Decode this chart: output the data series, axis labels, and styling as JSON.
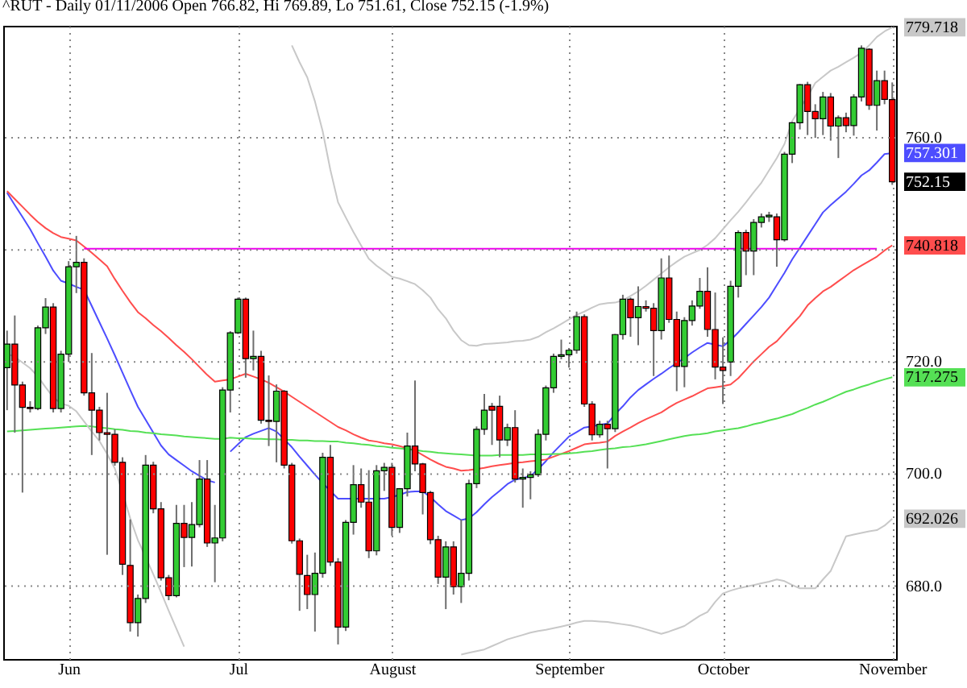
{
  "chart_data": {
    "type": "candlestick",
    "title": "^RUT - Daily 01/11/2006 Open 766.82, Hi 769.89, Lo 751.61, Close 752.15 (-1.9%)",
    "categories": [
      null,
      null,
      null,
      null,
      null,
      null,
      null,
      null,
      "Jun",
      null,
      null,
      null,
      null,
      null,
      null,
      null,
      null,
      null,
      null,
      null,
      null,
      null,
      null,
      null,
      null,
      null,
      null,
      null,
      null,
      null,
      "Jul",
      null,
      null,
      null,
      null,
      null,
      null,
      null,
      null,
      null,
      null,
      null,
      null,
      null,
      null,
      null,
      null,
      null,
      null,
      null,
      "August",
      null,
      null,
      null,
      null,
      null,
      null,
      null,
      null,
      null,
      null,
      null,
      null,
      null,
      null,
      null,
      null,
      null,
      null,
      null,
      null,
      null,
      null,
      "September",
      null,
      null,
      null,
      null,
      null,
      null,
      null,
      null,
      null,
      null,
      null,
      null,
      null,
      null,
      null,
      null,
      null,
      null,
      null,
      "October",
      null,
      null,
      null,
      null,
      null,
      null,
      null,
      null,
      null,
      null,
      null,
      null,
      null,
      null,
      null,
      null,
      null,
      null,
      null,
      null,
      null,
      "November"
    ],
    "ohlc": [
      [
        719.0,
        725.6,
        711.4,
        723.2
      ],
      [
        723.2,
        728.3,
        707.4,
        715.9
      ],
      [
        715.9,
        716.5,
        696.7,
        711.9
      ],
      [
        711.9,
        713.0,
        711.0,
        711.7
      ],
      [
        711.7,
        726.5,
        711.4,
        726.1
      ],
      [
        726.1,
        731.4,
        725.0,
        729.8
      ],
      [
        729.8,
        730.5,
        711.0,
        711.7
      ],
      [
        711.7,
        722.0,
        711.0,
        721.4
      ],
      [
        721.4,
        738.0,
        720.0,
        737.0
      ],
      [
        737.0,
        742.5,
        732.3,
        737.8
      ],
      [
        737.8,
        738.5,
        714.0,
        714.5
      ],
      [
        714.5,
        721.6,
        703.4,
        711.4
      ],
      [
        711.4,
        712.0,
        706.0,
        707.4
      ],
      [
        707.4,
        714.5,
        685.6,
        707.1
      ],
      [
        707.1,
        708.0,
        701.5,
        702.1
      ],
      [
        702.1,
        703.0,
        682.0,
        683.9
      ],
      [
        683.7,
        691.9,
        671.9,
        673.5
      ],
      [
        673.5,
        678.5,
        671.0,
        677.8
      ],
      [
        677.8,
        703.4,
        677.0,
        701.6
      ],
      [
        701.6,
        702.2,
        693.0,
        693.8
      ],
      [
        693.8,
        695.0,
        681.0,
        681.5
      ],
      [
        681.5,
        682.0,
        677.5,
        678.3
      ],
      [
        678.3,
        694.5,
        678.0,
        691.2
      ],
      [
        691.2,
        694.5,
        683.4,
        688.7
      ],
      [
        688.7,
        695.0,
        683.5,
        691.0
      ],
      [
        691.0,
        702.5,
        690.5,
        699.1
      ],
      [
        699.1,
        702.5,
        687.0,
        687.7
      ],
      [
        687.7,
        694.5,
        680.7,
        688.6
      ],
      [
        688.6,
        715.5,
        688.0,
        715.0
      ],
      [
        715.0,
        725.5,
        711.0,
        725.2
      ],
      [
        725.2,
        731.5,
        725.0,
        731.2
      ],
      [
        731.2,
        731.5,
        717.2,
        720.6
      ],
      [
        720.6,
        725.6,
        718.5,
        721.0
      ],
      [
        721.0,
        722.0,
        709.0,
        709.6
      ],
      [
        709.6,
        717.6,
        705.0,
        709.4
      ],
      [
        709.4,
        716.0,
        702.1,
        714.8
      ],
      [
        714.8,
        715.0,
        701.0,
        701.6
      ],
      [
        701.6,
        702.0,
        687.6,
        688.1
      ],
      [
        688.1,
        688.5,
        675.6,
        682.1
      ],
      [
        681.9,
        685.6,
        675.9,
        678.5
      ],
      [
        678.5,
        686.0,
        671.9,
        682.3
      ],
      [
        682.3,
        703.8,
        681.5,
        703.0
      ],
      [
        703.0,
        705.2,
        683.6,
        684.3
      ],
      [
        684.3,
        685.0,
        669.6,
        672.7
      ],
      [
        672.7,
        691.8,
        672.0,
        691.4
      ],
      [
        691.4,
        701.6,
        689.2,
        698.1
      ],
      [
        698.1,
        701.0,
        694.0,
        695.0
      ],
      [
        695.0,
        700.7,
        685.0,
        686.3
      ],
      [
        686.3,
        701.6,
        685.5,
        700.6
      ],
      [
        700.6,
        702.0,
        697.0,
        701.2
      ],
      [
        701.2,
        702.0,
        689.0,
        690.5
      ],
      [
        690.5,
        697.5,
        689.5,
        697.4
      ],
      [
        697.4,
        707.4,
        696.0,
        705.0
      ],
      [
        705.0,
        716.7,
        700.5,
        701.8
      ],
      [
        701.8,
        702.0,
        692.8,
        696.7
      ],
      [
        696.7,
        697.0,
        687.5,
        688.3
      ],
      [
        688.3,
        689.0,
        680.4,
        681.6
      ],
      [
        681.6,
        688.0,
        675.9,
        687.0
      ],
      [
        687.0,
        688.0,
        678.5,
        679.9
      ],
      [
        679.9,
        691.9,
        677.0,
        682.3
      ],
      [
        682.3,
        699.0,
        681.0,
        698.3
      ],
      [
        698.3,
        708.5,
        697.5,
        708.0
      ],
      [
        708.0,
        714.3,
        707.0,
        711.4
      ],
      [
        712.1,
        712.7,
        705.2,
        711.4
      ],
      [
        712.1,
        714.0,
        703.0,
        706.1
      ],
      [
        706.1,
        709.0,
        705.0,
        708.3
      ],
      [
        708.3,
        711.4,
        698.5,
        699.1
      ],
      [
        699.1,
        701.0,
        694.0,
        699.4
      ],
      [
        699.4,
        700.5,
        695.5,
        699.9
      ],
      [
        699.9,
        708.0,
        699.5,
        707.1
      ],
      [
        707.1,
        715.8,
        706.0,
        715.4
      ],
      [
        715.4,
        721.5,
        714.5,
        721.0
      ],
      [
        721.0,
        724.0,
        720.5,
        721.3
      ],
      [
        721.3,
        722.5,
        719.0,
        722.1
      ],
      [
        722.1,
        729.0,
        721.5,
        728.1
      ],
      [
        728.1,
        728.5,
        712.0,
        712.5
      ],
      [
        712.5,
        713.0,
        706.0,
        707.0
      ],
      [
        707.0,
        709.5,
        706.5,
        708.9
      ],
      [
        708.9,
        709.5,
        701.0,
        708.1
      ],
      [
        708.1,
        725.0,
        707.5,
        724.9
      ],
      [
        724.9,
        732.0,
        724.0,
        731.2
      ],
      [
        731.2,
        731.5,
        724.5,
        727.9
      ],
      [
        727.9,
        733.5,
        723.0,
        729.9
      ],
      [
        729.9,
        731.0,
        729.0,
        729.6
      ],
      [
        729.6,
        730.5,
        717.5,
        725.6
      ],
      [
        725.6,
        738.5,
        724.0,
        735.0
      ],
      [
        735.0,
        739.0,
        727.0,
        727.6
      ],
      [
        727.6,
        729.0,
        714.8,
        719.2
      ],
      [
        719.2,
        728.0,
        715.5,
        727.4
      ],
      [
        727.4,
        731.0,
        726.5,
        730.0
      ],
      [
        730.0,
        735.0,
        729.5,
        732.6
      ],
      [
        732.6,
        736.9,
        724.5,
        725.8
      ],
      [
        725.8,
        732.4,
        716.9,
        719.1
      ],
      [
        719.1,
        724.4,
        712.5,
        718.5
      ],
      [
        720.0,
        734.5,
        717.5,
        733.5
      ],
      [
        733.5,
        743.5,
        731.5,
        743.1
      ],
      [
        743.1,
        743.6,
        735.5,
        739.8
      ],
      [
        739.8,
        745.5,
        735.5,
        744.9
      ],
      [
        744.9,
        746.5,
        744.0,
        745.9
      ],
      [
        745.9,
        746.8,
        745.0,
        746.2
      ],
      [
        745.9,
        746.5,
        737.0,
        741.8
      ],
      [
        741.8,
        757.5,
        741.5,
        757.1
      ],
      [
        757.1,
        762.8,
        755.5,
        762.7
      ],
      [
        762.7,
        769.6,
        761.5,
        769.5
      ],
      [
        769.5,
        770.0,
        760.5,
        764.7
      ],
      [
        764.7,
        766.0,
        760.0,
        763.4
      ],
      [
        763.4,
        768.2,
        760.5,
        767.3
      ],
      [
        767.3,
        768.0,
        759.5,
        762.1
      ],
      [
        762.1,
        764.0,
        756.4,
        763.6
      ],
      [
        763.6,
        764.5,
        761.0,
        762.2
      ],
      [
        762.2,
        767.8,
        760.4,
        767.3
      ],
      [
        767.3,
        776.5,
        766.5,
        776.0
      ],
      [
        775.8,
        776.0,
        765.0,
        765.8
      ],
      [
        765.8,
        772.0,
        761.3,
        770.2
      ],
      [
        770.2,
        772.0,
        766.0,
        766.85
      ],
      [
        766.82,
        769.89,
        751.61,
        752.15
      ]
    ],
    "series": [
      {
        "type": "line",
        "color": "#4d4dff",
        "values": [
          750.2,
          748.0,
          745.9,
          743.7,
          741.2,
          738.8,
          736.3,
          734.5,
          734.0,
          733.4,
          732.9,
          730.0,
          727.1,
          724.2,
          721.2,
          718.1,
          715.0,
          712.0,
          709.7,
          707.4,
          705.1,
          703.5,
          702.5,
          701.5,
          700.5,
          699.7,
          698.9,
          698.5,
          null,
          704.0,
          705.3,
          706.6,
          707.2,
          707.7,
          708.2,
          707.6,
          706.2,
          704.8,
          703.1,
          701.5,
          699.9,
          698.4,
          697.0,
          695.6,
          695.6,
          695.6,
          695.6,
          695.6,
          695.6,
          695.6,
          695.9,
          696.3,
          696.8,
          696.9,
          696.9,
          695.9,
          694.6,
          693.4,
          692.6,
          691.8,
          692.1,
          693.2,
          694.6,
          695.9,
          697.0,
          698.2,
          699.0,
          699.3,
          699.6,
          700.9,
          702.3,
          703.9,
          705.3,
          706.7,
          707.5,
          708.3,
          708.5,
          708.8,
          709.0,
          710.7,
          712.1,
          713.7,
          715.0,
          716.0,
          717.0,
          717.9,
          718.9,
          719.8,
          720.7,
          721.7,
          722.6,
          723.4,
          723.1,
          722.8,
          723.9,
          725.3,
          726.8,
          728.3,
          729.8,
          731.5,
          733.7,
          735.9,
          738.3,
          740.4,
          742.5,
          744.6,
          746.7,
          748.0,
          749.2,
          750.4,
          751.8,
          753.3,
          754.2,
          755.6,
          757.1,
          757.301
        ]
      },
      {
        "type": "line",
        "color": "#ff4d4d",
        "values": [
          750.5,
          749.1,
          747.7,
          746.3,
          745.0,
          743.9,
          743.0,
          742.3,
          742.0,
          741.7,
          740.6,
          739.5,
          738.3,
          737.1,
          734.8,
          732.7,
          730.7,
          728.9,
          727.8,
          726.6,
          725.5,
          724.3,
          723.0,
          721.8,
          720.5,
          719.1,
          717.7,
          716.5,
          716.7,
          716.9,
          717.4,
          717.9,
          717.4,
          716.9,
          716.3,
          715.5,
          714.7,
          713.8,
          712.9,
          712.0,
          711.1,
          710.2,
          709.3,
          708.4,
          707.8,
          707.1,
          706.5,
          706.0,
          705.8,
          705.5,
          705.3,
          705.0,
          704.6,
          704.2,
          703.4,
          702.6,
          701.9,
          701.3,
          701.0,
          700.6,
          700.7,
          700.9,
          701.1,
          701.4,
          701.6,
          701.8,
          702.0,
          702.1,
          702.3,
          702.4,
          702.6,
          703.1,
          703.6,
          704.1,
          704.7,
          705.3,
          705.5,
          705.6,
          705.8,
          706.8,
          707.6,
          708.3,
          709.1,
          709.8,
          710.4,
          711.0,
          711.9,
          712.7,
          713.3,
          713.9,
          714.6,
          715.3,
          715.5,
          715.7,
          716.0,
          717.1,
          718.6,
          720.1,
          721.4,
          722.7,
          723.7,
          725.2,
          726.7,
          728.2,
          730.1,
          731.4,
          732.6,
          733.4,
          734.4,
          735.4,
          736.4,
          737.2,
          738.0,
          738.8,
          739.9,
          740.818
        ]
      },
      {
        "type": "line",
        "color": "#55e055",
        "values": [
          707.6,
          707.7,
          707.8,
          707.9,
          708.0,
          708.1,
          708.2,
          708.3,
          708.4,
          708.5,
          708.6,
          708.5,
          708.3,
          708.2,
          708.0,
          707.9,
          707.7,
          707.6,
          707.4,
          707.3,
          707.1,
          707.0,
          706.9,
          706.7,
          706.6,
          706.5,
          706.4,
          706.3,
          706.3,
          706.5,
          706.4,
          706.4,
          706.3,
          706.3,
          706.2,
          706.2,
          706.1,
          706.1,
          706.0,
          706.0,
          705.9,
          705.9,
          705.8,
          705.8,
          705.6,
          705.5,
          705.3,
          705.2,
          705.0,
          704.9,
          704.7,
          704.6,
          704.4,
          704.3,
          704.1,
          704.0,
          703.8,
          703.7,
          703.6,
          703.5,
          703.4,
          703.3,
          703.3,
          703.3,
          703.4,
          703.4,
          703.4,
          703.4,
          703.5,
          703.5,
          703.5,
          703.6,
          703.6,
          703.7,
          703.8,
          704.0,
          704.1,
          704.3,
          704.5,
          704.6,
          704.8,
          704.9,
          705.1,
          705.3,
          705.6,
          705.9,
          706.2,
          706.5,
          706.8,
          707.0,
          707.1,
          707.3,
          707.6,
          707.8,
          708.0,
          708.2,
          708.5,
          708.9,
          709.2,
          709.6,
          709.9,
          710.3,
          710.7,
          711.3,
          711.8,
          712.4,
          712.9,
          713.5,
          714.1,
          714.7,
          715.1,
          715.6,
          716.0,
          716.5,
          716.9,
          717.275
        ]
      },
      {
        "type": "line",
        "color": "#c8c8c8",
        "values": [
          null,
          null,
          null,
          null,
          null,
          null,
          null,
          null,
          null,
          null,
          null,
          null,
          null,
          null,
          null,
          null,
          null,
          null,
          null,
          null,
          null,
          null,
          null,
          null,
          null,
          null,
          null,
          null,
          null,
          null,
          null,
          null,
          null,
          null,
          null,
          null,
          null,
          776.5,
          773.5,
          770.8,
          766.5,
          761.2,
          754.3,
          748.5,
          745.8,
          743.2,
          740.8,
          738.4,
          737.2,
          736.2,
          735.2,
          734.9,
          734.4,
          733.9,
          732.8,
          731.5,
          729.4,
          727.8,
          725.6,
          723.9,
          723.0,
          722.9,
          723.2,
          723.3,
          723.4,
          723.5,
          723.7,
          723.8,
          724.0,
          724.5,
          725.3,
          726.0,
          726.8,
          727.6,
          728.4,
          729.0,
          729.7,
          730.3,
          730.5,
          730.6,
          731.0,
          731.8,
          732.6,
          733.6,
          734.7,
          735.8,
          736.9,
          737.9,
          738.8,
          739.4,
          740.0,
          740.9,
          742.1,
          743.7,
          745.3,
          746.8,
          748.5,
          750.3,
          752.0,
          754.2,
          756.4,
          758.9,
          763.0,
          765.2,
          767.4,
          769.8,
          770.9,
          772.0,
          772.7,
          773.5,
          774.3,
          775.2,
          776.5,
          778.0,
          779.0,
          779.718
        ]
      },
      {
        "type": "line",
        "color": "#c8c8c8",
        "values": [
          721.5,
          720.9,
          719.9,
          718.9,
          717.4,
          715.5,
          713.7,
          712.6,
          712.2,
          711.2,
          709.4,
          707.6,
          705.9,
          703.6,
          701.0,
          696.7,
          692.1,
          688.2,
          685.2,
          682.1,
          678.9,
          675.6,
          672.4,
          669.2,
          null,
          null,
          null,
          null,
          null,
          null,
          null,
          null,
          null,
          null,
          null,
          null,
          null,
          null,
          null,
          null,
          null,
          null,
          null,
          null,
          null,
          null,
          null,
          null,
          null,
          null,
          null,
          null,
          null,
          null,
          null,
          null,
          null,
          null,
          null,
          667.8,
          668.1,
          668.4,
          668.7,
          669.3,
          669.9,
          670.5,
          670.9,
          671.3,
          671.7,
          672.0,
          672.2,
          672.5,
          672.8,
          673.1,
          673.5,
          673.8,
          673.8,
          673.7,
          673.6,
          673.4,
          673.2,
          673.0,
          672.7,
          672.3,
          671.9,
          671.5,
          671.9,
          672.4,
          672.9,
          673.8,
          674.7,
          675.4,
          677.2,
          678.7,
          679.2,
          679.6,
          679.9,
          680.2,
          680.5,
          680.8,
          681.2,
          680.9,
          680.2,
          679.6,
          679.6,
          679.6,
          681.2,
          682.7,
          685.8,
          688.9,
          689.2,
          689.5,
          689.8,
          690.0,
          690.8,
          692.026
        ]
      },
      {
        "type": "line",
        "color": "#ee00ee",
        "values": [
          null,
          null,
          null,
          null,
          null,
          null,
          null,
          null,
          null,
          null,
          740.2,
          740.2,
          740.2,
          740.2,
          740.2,
          740.2,
          740.2,
          740.2,
          740.2,
          740.2,
          740.2,
          740.2,
          740.2,
          740.2,
          740.2,
          740.2,
          740.2,
          740.2,
          740.2,
          740.2,
          740.2,
          740.2,
          740.2,
          740.2,
          740.2,
          740.2,
          740.2,
          740.2,
          740.2,
          740.2,
          740.2,
          740.2,
          740.2,
          740.2,
          740.2,
          740.2,
          740.2,
          740.2,
          740.2,
          740.2,
          740.2,
          740.2,
          740.2,
          740.2,
          740.2,
          740.2,
          740.2,
          740.2,
          740.2,
          740.2,
          740.2,
          740.2,
          740.2,
          740.2,
          740.2,
          740.2,
          740.2,
          740.2,
          740.2,
          740.2,
          740.2,
          740.2,
          740.2,
          740.2,
          740.2,
          740.2,
          740.2,
          740.2,
          740.2,
          740.2,
          740.2,
          740.2,
          740.2,
          740.2,
          740.2,
          740.2,
          740.2,
          740.2,
          740.2,
          740.2,
          740.2,
          740.2,
          740.2,
          740.2,
          740.2,
          740.2,
          740.2,
          740.2,
          740.2,
          740.2,
          740.2,
          740.2,
          740.2,
          740.2,
          740.2,
          740.2,
          740.2,
          740.2,
          740.2,
          740.2,
          740.2,
          740.2,
          740.2,
          740.2,
          null,
          null
        ]
      }
    ],
    "ylim": [
      667,
      780
    ],
    "yticks": [
      {
        "value": 680,
        "label": "680.0"
      },
      692.026,
      {
        "value": 700,
        "label": "700.0"
      },
      717.275,
      {
        "value": 720,
        "label": "720.0"
      },
      {
        "value": 740,
        "label": null
      },
      740.818,
      752.15,
      757.301,
      {
        "value": 760,
        "label": "760.0"
      },
      779.718
    ],
    "grid": true
  }
}
